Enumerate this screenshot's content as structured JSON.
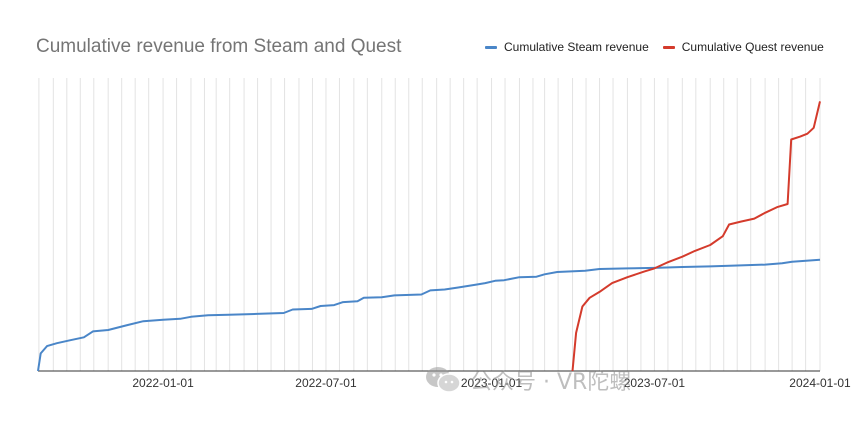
{
  "chart_data": {
    "type": "line",
    "title": "Cumulative revenue from Steam and Quest",
    "xlabel": "",
    "ylabel": "",
    "x_range": [
      "2021-08-15",
      "2024-01-01"
    ],
    "x_ticks": [
      "2022-01-01",
      "2022-07-01",
      "2023-01-01",
      "2023-07-01",
      "2024-01-01"
    ],
    "y_ticks": [],
    "grid": "vertical",
    "legend_position": "top-right",
    "series": [
      {
        "name": "Cumulative Steam revenue",
        "color": "#4a86c8",
        "points": [
          [
            "2021-08-15",
            0.0
          ],
          [
            "2021-08-18",
            0.06
          ],
          [
            "2021-08-25",
            0.085
          ],
          [
            "2021-09-05",
            0.095
          ],
          [
            "2021-09-20",
            0.105
          ],
          [
            "2021-10-05",
            0.115
          ],
          [
            "2021-10-15",
            0.135
          ],
          [
            "2021-11-01",
            0.14
          ],
          [
            "2021-11-20",
            0.155
          ],
          [
            "2021-12-10",
            0.17
          ],
          [
            "2022-01-01",
            0.175
          ],
          [
            "2022-01-20",
            0.178
          ],
          [
            "2022-02-01",
            0.185
          ],
          [
            "2022-02-20",
            0.19
          ],
          [
            "2022-03-15",
            0.192
          ],
          [
            "2022-04-15",
            0.195
          ],
          [
            "2022-05-15",
            0.198
          ],
          [
            "2022-05-25",
            0.21
          ],
          [
            "2022-06-15",
            0.212
          ],
          [
            "2022-06-25",
            0.222
          ],
          [
            "2022-07-10",
            0.225
          ],
          [
            "2022-07-20",
            0.235
          ],
          [
            "2022-08-05",
            0.238
          ],
          [
            "2022-08-12",
            0.25
          ],
          [
            "2022-09-01",
            0.252
          ],
          [
            "2022-09-15",
            0.258
          ],
          [
            "2022-10-15",
            0.261
          ],
          [
            "2022-10-25",
            0.275
          ],
          [
            "2022-11-10",
            0.278
          ],
          [
            "2022-11-25",
            0.285
          ],
          [
            "2022-12-15",
            0.295
          ],
          [
            "2022-12-25",
            0.3
          ],
          [
            "2023-01-05",
            0.308
          ],
          [
            "2023-01-15",
            0.31
          ],
          [
            "2023-02-01",
            0.32
          ],
          [
            "2023-02-20",
            0.322
          ],
          [
            "2023-03-01",
            0.33
          ],
          [
            "2023-03-15",
            0.338
          ],
          [
            "2023-04-15",
            0.342
          ],
          [
            "2023-05-01",
            0.348
          ],
          [
            "2023-06-01",
            0.35
          ],
          [
            "2023-07-01",
            0.352
          ],
          [
            "2023-08-01",
            0.355
          ],
          [
            "2023-09-01",
            0.357
          ],
          [
            "2023-10-01",
            0.36
          ],
          [
            "2023-11-01",
            0.363
          ],
          [
            "2023-11-20",
            0.368
          ],
          [
            "2023-12-01",
            0.373
          ],
          [
            "2024-01-01",
            0.38
          ]
        ]
      },
      {
        "name": "Cumulative Quest revenue",
        "color": "#d43b2c",
        "points": [
          [
            "2023-04-01",
            0.0
          ],
          [
            "2023-04-05",
            0.13
          ],
          [
            "2023-04-12",
            0.22
          ],
          [
            "2023-04-20",
            0.25
          ],
          [
            "2023-05-01",
            0.27
          ],
          [
            "2023-05-15",
            0.3
          ],
          [
            "2023-06-01",
            0.32
          ],
          [
            "2023-06-20",
            0.34
          ],
          [
            "2023-07-01",
            0.35
          ],
          [
            "2023-07-15",
            0.37
          ],
          [
            "2023-08-01",
            0.39
          ],
          [
            "2023-08-15",
            0.41
          ],
          [
            "2023-09-01",
            0.43
          ],
          [
            "2023-09-15",
            0.46
          ],
          [
            "2023-09-22",
            0.5
          ],
          [
            "2023-10-05",
            0.51
          ],
          [
            "2023-10-20",
            0.52
          ],
          [
            "2023-11-01",
            0.54
          ],
          [
            "2023-11-15",
            0.56
          ],
          [
            "2023-11-26",
            0.57
          ],
          [
            "2023-11-30",
            0.79
          ],
          [
            "2023-12-10",
            0.8
          ],
          [
            "2023-12-18",
            0.81
          ],
          [
            "2023-12-25",
            0.83
          ],
          [
            "2024-01-01",
            0.92
          ]
        ]
      }
    ]
  },
  "watermark": {
    "logo_icon": "wechat-icon",
    "text": "公众号 · VR陀螺"
  }
}
